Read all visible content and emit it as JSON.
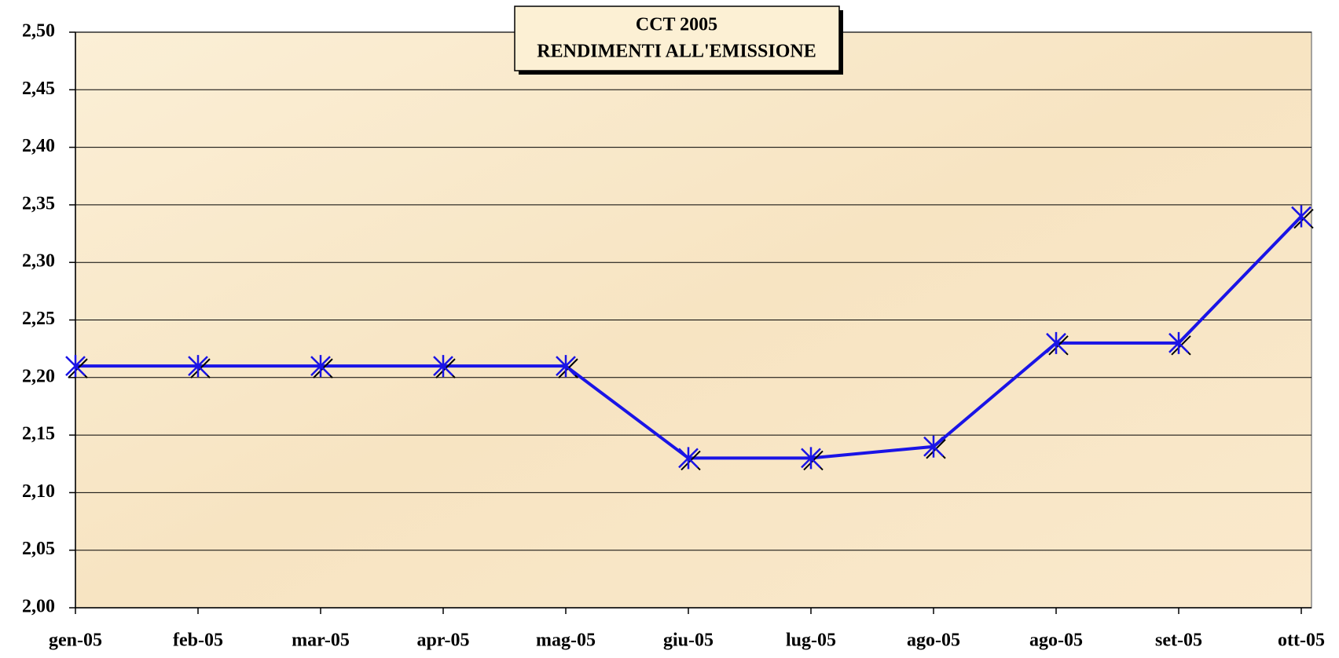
{
  "chart_data": {
    "type": "line",
    "title": "CCT  2005",
    "subtitle": "RENDIMENTI ALL'EMISSIONE",
    "categories": [
      "gen-05",
      "feb-05",
      "mar-05",
      "apr-05",
      "mag-05",
      "giu-05",
      "lug-05",
      "ago-05",
      "ago-05",
      "set-05",
      "ott-05"
    ],
    "series": [
      {
        "name": "CCT",
        "color": "#1a14e6",
        "values": [
          2.21,
          2.21,
          2.21,
          2.21,
          2.21,
          2.13,
          2.13,
          2.14,
          2.23,
          2.23,
          2.34
        ]
      }
    ],
    "ylim": [
      2.0,
      2.5
    ],
    "yticks": [
      {
        "value": 2.0,
        "label": "2,00"
      },
      {
        "value": 2.05,
        "label": "2,05"
      },
      {
        "value": 2.1,
        "label": "2,10"
      },
      {
        "value": 2.15,
        "label": "2,15"
      },
      {
        "value": 2.2,
        "label": "2,20"
      },
      {
        "value": 2.25,
        "label": "2,25"
      },
      {
        "value": 2.3,
        "label": "2,30"
      },
      {
        "value": 2.35,
        "label": "2,35"
      },
      {
        "value": 2.4,
        "label": "2,40"
      },
      {
        "value": 2.45,
        "label": "2,45"
      },
      {
        "value": 2.5,
        "label": "2,50"
      }
    ],
    "grid": true
  }
}
